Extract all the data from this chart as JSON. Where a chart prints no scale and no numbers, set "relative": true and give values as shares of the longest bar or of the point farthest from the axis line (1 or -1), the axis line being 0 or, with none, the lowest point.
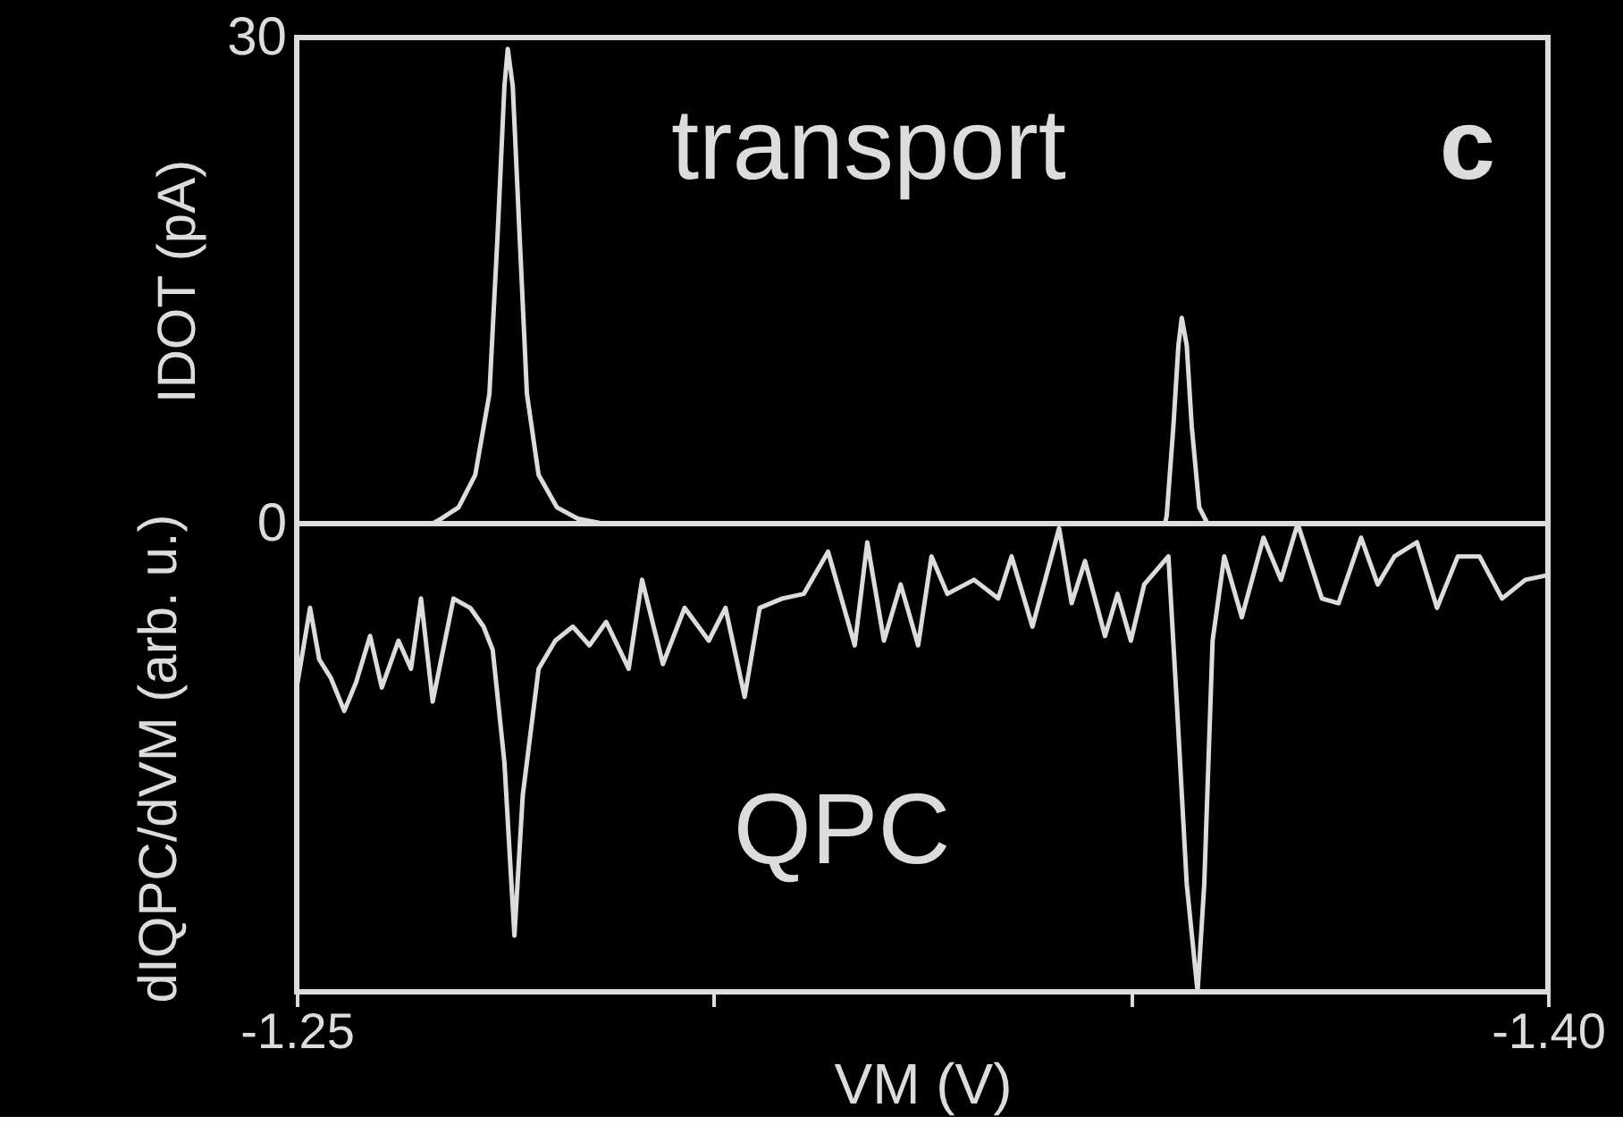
{
  "chart_data": [
    {
      "type": "line",
      "ylabel": "IDOT (pA)",
      "annotations": [
        "transport",
        "c"
      ],
      "xlim": [
        -1.25,
        -1.4
      ],
      "ylim": [
        0,
        30
      ],
      "yticks": [
        0,
        30
      ],
      "tick_labels": "y",
      "line_style": "solid",
      "marker": "none",
      "series": [
        {
          "color": "#dcdcdc",
          "x": [
            -1.25,
            -1.2663,
            -1.2673,
            -1.2694,
            -1.2714,
            -1.2731,
            -1.2741,
            -1.2749,
            -1.2753,
            -1.2759,
            -1.2767,
            -1.2776,
            -1.279,
            -1.2812,
            -1.2837,
            -1.2867,
            -1.3541,
            -1.3543,
            -1.3551,
            -1.3557,
            -1.3561,
            -1.3567,
            -1.3573,
            -1.3582,
            -1.3592,
            -1.4
          ],
          "values": [
            0,
            0,
            0.3,
            1.0,
            3,
            8,
            18,
            27,
            29.3,
            27,
            18,
            8,
            3,
            1,
            0.3,
            0,
            0,
            0.5,
            6,
            11,
            12.7,
            11,
            6,
            1,
            0,
            0
          ]
        }
      ]
    },
    {
      "type": "line",
      "relative": true,
      "xlabel": "VM (V)",
      "ylabel": "dIQPC/dVM (arb. u.)",
      "annotations": [
        "QPC"
      ],
      "xlim": [
        -1.25,
        -1.4
      ],
      "xticks": [
        -1.25,
        {
          "value": -1.3,
          "label": null
        },
        {
          "value": -1.35,
          "label": null
        },
        {
          "value": -1.4,
          "label": "-1.40"
        }
      ],
      "tick_labels": "x",
      "line_style": "solid",
      "marker": "none",
      "series": [
        {
          "color": "#dcdcdc",
          "x": [
            -1.25,
            -1.2516,
            -1.2527,
            -1.2541,
            -1.2557,
            -1.2571,
            -1.2588,
            -1.2602,
            -1.2622,
            -1.2637,
            -1.2649,
            -1.2663,
            -1.2688,
            -1.2708,
            -1.2724,
            -1.2735,
            -1.2749,
            -1.2761,
            -1.2771,
            -1.279,
            -1.281,
            -1.2831,
            -1.2851,
            -1.2871,
            -1.2898,
            -1.2914,
            -1.2939,
            -1.2965,
            -1.2994,
            -1.3014,
            -1.3037,
            -1.3055,
            -1.3082,
            -1.3108,
            -1.3137,
            -1.3169,
            -1.3184,
            -1.3204,
            -1.3224,
            -1.3245,
            -1.3261,
            -1.328,
            -1.3312,
            -1.3341,
            -1.3357,
            -1.3382,
            -1.3414,
            -1.3429,
            -1.3445,
            -1.3469,
            -1.3484,
            -1.35,
            -1.3516,
            -1.3545,
            -1.3555,
            -1.3567,
            -1.358,
            -1.3588,
            -1.3598,
            -1.3612,
            -1.3633,
            -1.3659,
            -1.368,
            -1.37,
            -1.3729,
            -1.3749,
            -1.3776,
            -1.3796,
            -1.3816,
            -1.3843,
            -1.3867,
            -1.3892,
            -1.3918,
            -1.3945,
            -1.3973,
            -1.4
          ],
          "values": [
            0.65,
            0.82,
            0.71,
            0.67,
            0.6,
            0.66,
            0.76,
            0.65,
            0.75,
            0.69,
            0.84,
            0.62,
            0.84,
            0.82,
            0.78,
            0.73,
            0.49,
            0.12,
            0.42,
            0.69,
            0.75,
            0.78,
            0.74,
            0.79,
            0.69,
            0.88,
            0.7,
            0.82,
            0.75,
            0.82,
            0.63,
            0.82,
            0.84,
            0.85,
            0.94,
            0.74,
            0.96,
            0.75,
            0.87,
            0.74,
            0.93,
            0.85,
            0.88,
            0.84,
            0.93,
            0.78,
            0.99,
            0.83,
            0.92,
            0.76,
            0.85,
            0.75,
            0.87,
            0.93,
            0.62,
            0.23,
            0,
            0.23,
            0.75,
            0.93,
            0.8,
            0.97,
            0.88,
            1.0,
            0.84,
            0.83,
            0.97,
            0.87,
            0.93,
            0.96,
            0.82,
            0.93,
            0.93,
            0.84,
            0.88,
            0.89
          ]
        }
      ]
    }
  ]
}
